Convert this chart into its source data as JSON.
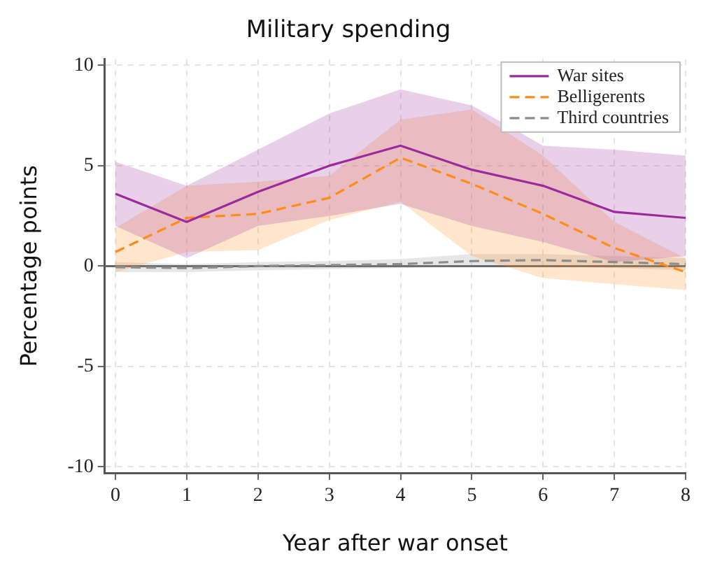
{
  "chart_data": {
    "type": "line",
    "title": "Military spending",
    "xlabel": "Year after war onset",
    "ylabel": "Percentage points",
    "x": [
      0,
      1,
      2,
      3,
      4,
      5,
      6,
      7,
      8
    ],
    "series": [
      {
        "name": "War sites",
        "color": "#9b2a9b",
        "line_style": "solid",
        "values": [
          3.6,
          2.2,
          3.7,
          5.0,
          6.0,
          4.8,
          4.0,
          2.7,
          2.4
        ],
        "lower": [
          2.0,
          0.4,
          2.0,
          2.5,
          3.1,
          2.0,
          1.2,
          0.2,
          0.5
        ],
        "upper": [
          5.2,
          4.0,
          5.8,
          7.6,
          8.8,
          8.0,
          6.0,
          5.8,
          5.5
        ]
      },
      {
        "name": "Belligerents",
        "color": "#ff8c1a",
        "line_style": "dashed",
        "values": [
          0.7,
          2.4,
          2.6,
          3.4,
          5.4,
          4.1,
          2.6,
          0.9,
          -0.3
        ],
        "lower": [
          -0.3,
          0.7,
          0.8,
          2.3,
          3.2,
          0.5,
          -0.6,
          -0.9,
          -1.2
        ],
        "upper": [
          1.9,
          4.0,
          4.2,
          4.5,
          7.3,
          7.8,
          5.5,
          2.2,
          0.4
        ]
      },
      {
        "name": "Third countries",
        "color": "#8c8c8c",
        "line_style": "dashed",
        "values": [
          -0.05,
          -0.1,
          0.0,
          0.05,
          0.1,
          0.25,
          0.3,
          0.2,
          0.1
        ],
        "lower": [
          -0.3,
          -0.3,
          -0.2,
          -0.15,
          -0.1,
          0.0,
          0.0,
          -0.1,
          -0.2
        ],
        "upper": [
          0.2,
          0.1,
          0.2,
          0.25,
          0.35,
          0.6,
          0.6,
          0.5,
          0.4
        ]
      }
    ],
    "xlim": [
      -0.15,
      8
    ],
    "xticks": [
      0,
      1,
      2,
      3,
      4,
      5,
      6,
      7,
      8
    ],
    "ylim": [
      -10.3,
      10.3
    ],
    "yticks": [
      -10,
      -5,
      0,
      5,
      10
    ],
    "ref_lines": [
      {
        "axis": "y",
        "value": 0,
        "color": "#666666"
      }
    ],
    "grid": true,
    "legend": "top right",
    "marker": "none"
  }
}
